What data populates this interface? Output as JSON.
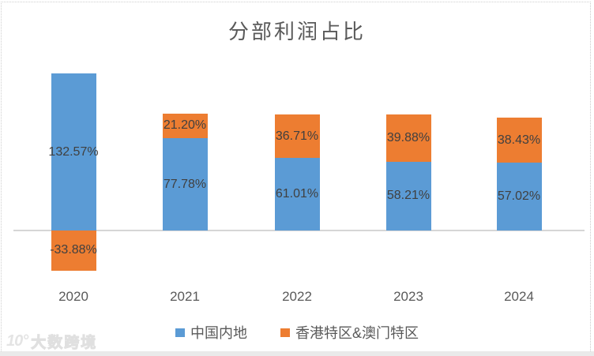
{
  "title": "分部利润占比",
  "watermark": {
    "logo": "10°",
    "text": "大数跨境"
  },
  "legend": {
    "items": [
      {
        "label": "中国内地",
        "color": "#5B9BD5"
      },
      {
        "label": "香港特区&澳门特区",
        "color": "#ED7D31"
      }
    ]
  },
  "colors": {
    "blue_series": "#5B9BD5",
    "orange_series": "#ED7D31",
    "title_text": "#595959",
    "data_label_text": "#404040",
    "axis_line": "#D6D6D6"
  },
  "chart_data": {
    "type": "bar",
    "stacked": true,
    "title": "分部利润占比",
    "categories": [
      "2020",
      "2021",
      "2022",
      "2023",
      "2024"
    ],
    "series": [
      {
        "name": "中国内地",
        "color": "#5B9BD5",
        "values": [
          132.57,
          77.78,
          61.01,
          58.21,
          57.02
        ],
        "labels": [
          "132.57%",
          "77.78%",
          "61.01%",
          "58.21%",
          "57.02%"
        ]
      },
      {
        "name": "香港特区&澳门特区",
        "color": "#ED7D31",
        "values": [
          -33.88,
          21.2,
          36.71,
          39.88,
          38.43
        ],
        "labels": [
          "-33.88%",
          "21.20%",
          "36.71%",
          "39.88%",
          "38.43%"
        ]
      }
    ],
    "xlabel": "",
    "ylabel": "",
    "ylim": [
      -50,
      145
    ],
    "grid": false,
    "axis_labels_visible": false,
    "data_labels": "inside-center",
    "legend_position": "bottom"
  }
}
